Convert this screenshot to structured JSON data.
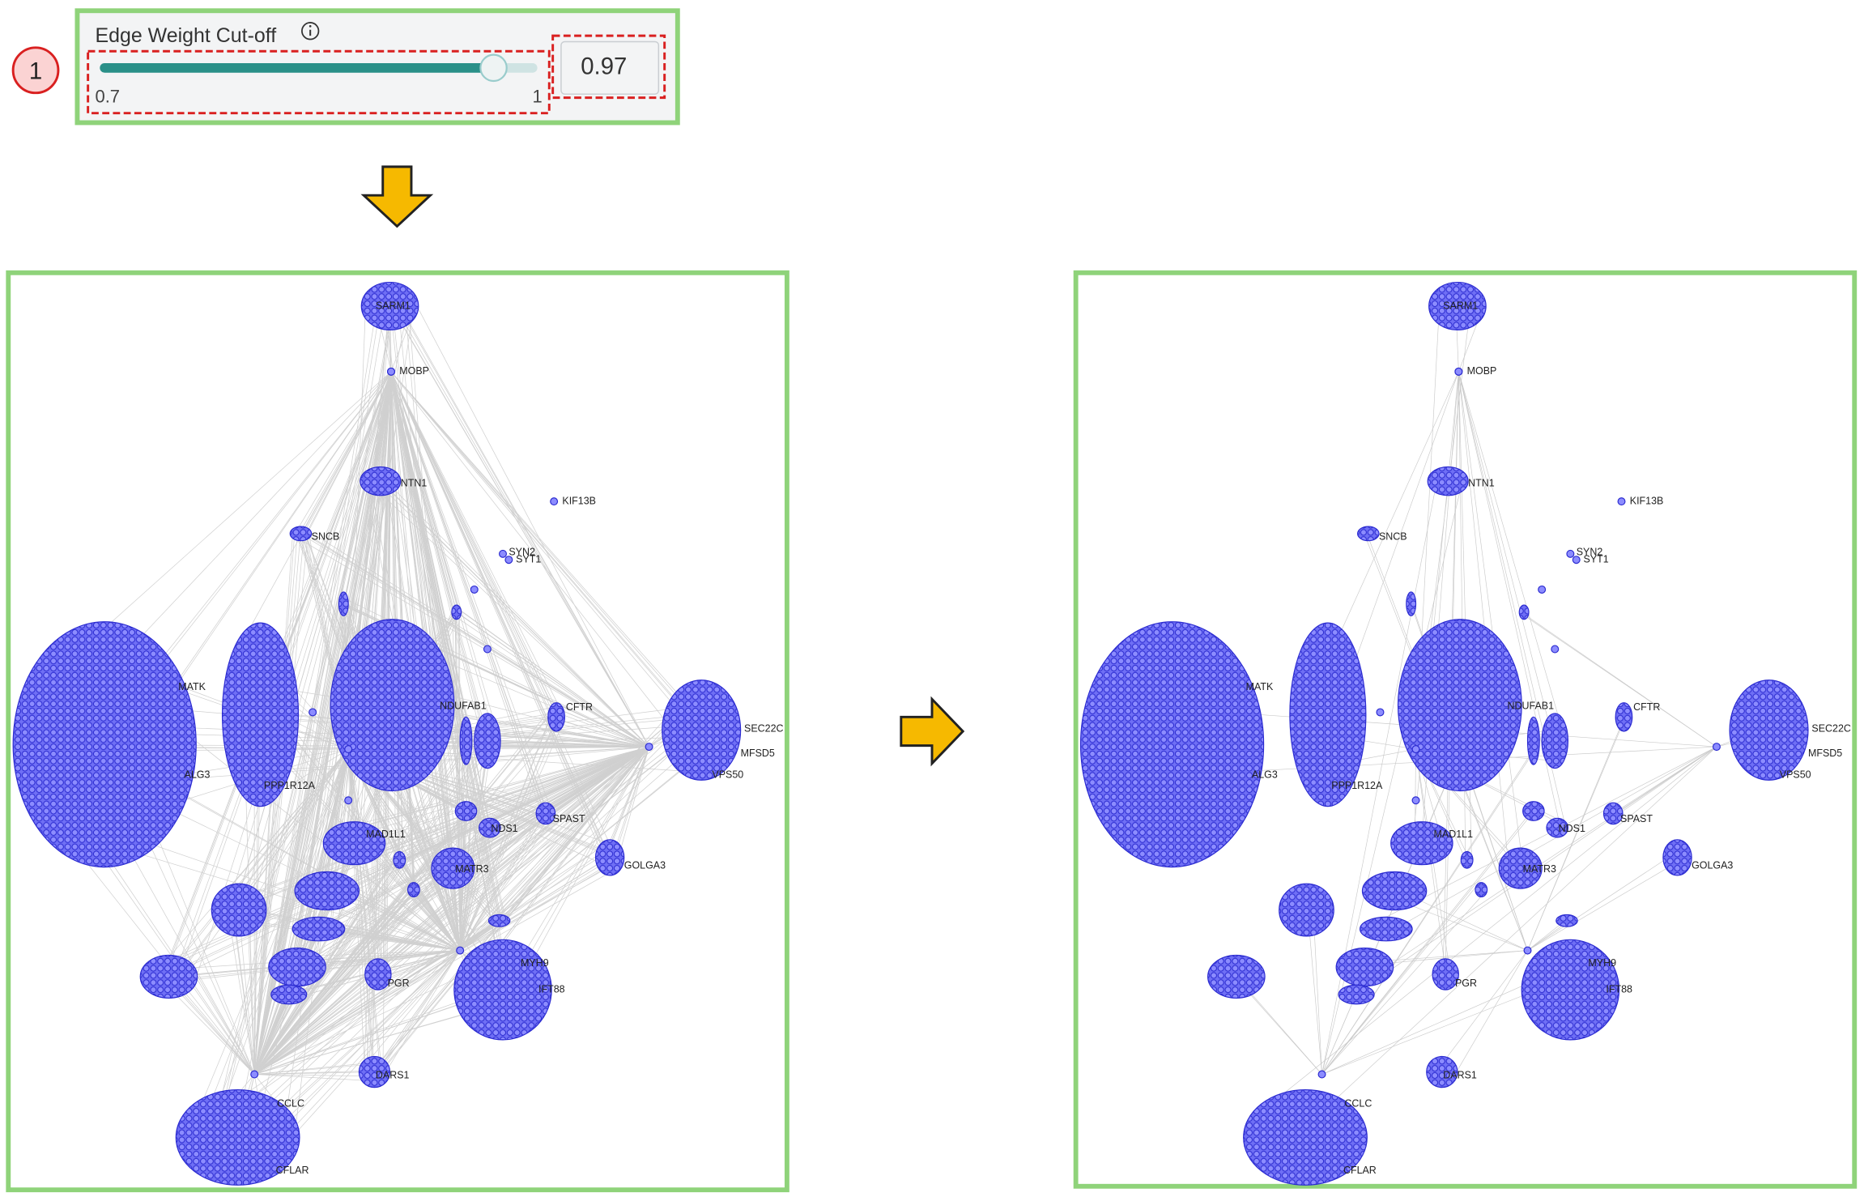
{
  "control": {
    "step": "1",
    "label": "Edge Weight Cut-off",
    "min": 0.7,
    "max": 1,
    "value": 0.97
  },
  "graphs": [
    {
      "nodes": [
        "SARM1",
        "MOBP",
        "NTN1",
        "KIF13B",
        "SNCB",
        "SYN2",
        "SYT1",
        "MATK",
        "NDUFAB1",
        "CFTR",
        "SEC22C",
        "MFSD5",
        "VPS50",
        "ALG3",
        "PPP1R12A",
        "MAD1L1",
        "SPAST",
        "GOLGA3",
        "MATR3",
        "NDS1",
        "PGR",
        "MYH9",
        "IFT88",
        "DARS1",
        "CCLC",
        "CFLAR"
      ]
    },
    {
      "nodes": [
        "SARM1",
        "MOBP",
        "NTN1",
        "KIF13B",
        "SNCB",
        "SYN2",
        "SYT1",
        "MATK",
        "NDUFAB1",
        "CFTR",
        "SEC22C",
        "MFSD5",
        "VPS50",
        "ALG3",
        "PPP1R12A",
        "MAD1L1",
        "SPAST",
        "GOLGA3",
        "MATR3",
        "NDS1",
        "PGR",
        "MYH9",
        "IFT88",
        "DARS1",
        "CCLC",
        "CFLAR"
      ]
    }
  ]
}
